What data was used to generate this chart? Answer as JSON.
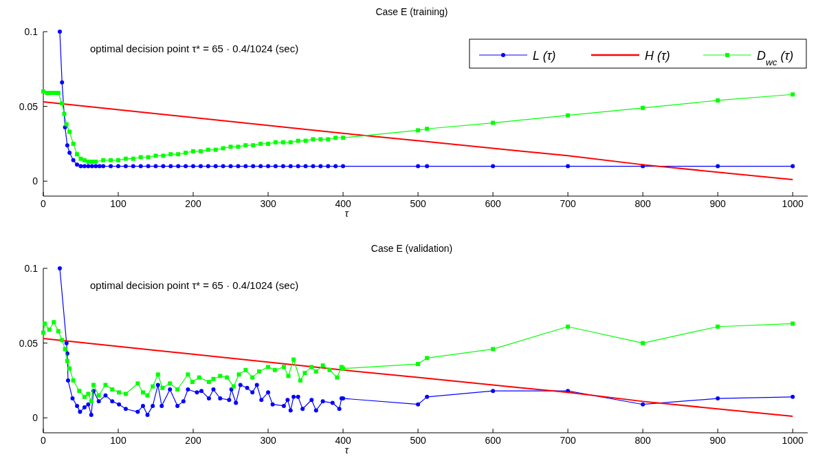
{
  "chart_data": [
    {
      "type": "line",
      "title": "Case E (training)",
      "xlabel": "τ",
      "annotations": [
        "optimal decision point τ* = 65 · 0.4/1024 (sec)"
      ],
      "xlim": [
        0,
        1020
      ],
      "xticks": [
        0,
        100,
        200,
        300,
        400,
        500,
        600,
        700,
        800,
        900,
        1000
      ],
      "ylim": [
        -0.01,
        0.1
      ],
      "yticks": [
        0,
        0.05,
        0.1
      ],
      "legend": "top right",
      "grid": false,
      "series": [
        {
          "name": "L (τ)",
          "color": "#0000ff",
          "marker": "circle",
          "x": [
            22,
            25,
            29,
            32,
            35,
            40,
            45,
            50,
            55,
            60,
            65,
            70,
            75,
            80,
            90,
            100,
            110,
            120,
            130,
            140,
            150,
            160,
            170,
            180,
            190,
            200,
            210,
            220,
            230,
            240,
            250,
            260,
            270,
            280,
            290,
            300,
            310,
            320,
            330,
            340,
            350,
            360,
            370,
            380,
            390,
            400,
            500,
            512,
            600,
            700,
            800,
            900,
            1000
          ],
          "values": [
            0.1,
            0.066,
            0.036,
            0.024,
            0.019,
            0.014,
            0.011,
            0.01,
            0.01,
            0.01,
            0.01,
            0.01,
            0.01,
            0.01,
            0.01,
            0.01,
            0.01,
            0.01,
            0.01,
            0.01,
            0.01,
            0.01,
            0.01,
            0.01,
            0.01,
            0.01,
            0.01,
            0.01,
            0.01,
            0.01,
            0.01,
            0.01,
            0.01,
            0.01,
            0.01,
            0.01,
            0.01,
            0.01,
            0.01,
            0.01,
            0.01,
            0.01,
            0.01,
            0.01,
            0.01,
            0.01,
            0.01,
            0.01,
            0.01,
            0.01,
            0.01,
            0.01,
            0.01
          ]
        },
        {
          "name": "H (τ)",
          "color": "#ff0000",
          "marker": "none",
          "x": [
            0,
            400,
            500,
            700,
            800,
            1000
          ],
          "values": [
            0.053,
            0.032,
            0.027,
            0.017,
            0.011,
            0.001
          ]
        },
        {
          "name": "D$_{wc}$ (τ)",
          "color": "#00ff00",
          "marker": "square",
          "x": [
            0,
            5,
            10,
            15,
            20,
            25,
            28,
            31,
            35,
            40,
            45,
            50,
            55,
            60,
            65,
            70,
            80,
            90,
            100,
            110,
            120,
            130,
            140,
            150,
            160,
            170,
            180,
            190,
            200,
            210,
            220,
            230,
            240,
            250,
            260,
            270,
            280,
            290,
            300,
            310,
            320,
            330,
            340,
            350,
            360,
            370,
            380,
            390,
            400,
            500,
            512,
            600,
            700,
            800,
            900,
            1000
          ],
          "values": [
            0.06,
            0.059,
            0.059,
            0.059,
            0.059,
            0.052,
            0.045,
            0.038,
            0.033,
            0.025,
            0.018,
            0.015,
            0.014,
            0.013,
            0.013,
            0.013,
            0.014,
            0.014,
            0.014,
            0.015,
            0.015,
            0.016,
            0.016,
            0.017,
            0.017,
            0.018,
            0.018,
            0.019,
            0.02,
            0.02,
            0.021,
            0.021,
            0.022,
            0.023,
            0.023,
            0.024,
            0.024,
            0.025,
            0.025,
            0.026,
            0.026,
            0.026,
            0.027,
            0.027,
            0.028,
            0.028,
            0.028,
            0.029,
            0.029,
            0.034,
            0.035,
            0.039,
            0.044,
            0.049,
            0.054,
            0.058
          ]
        }
      ]
    },
    {
      "type": "line",
      "title": "Case E (validation)",
      "xlabel": "τ",
      "annotations": [
        "optimal decision point τ* = 65 · 0.4/1024 (sec)"
      ],
      "xlim": [
        0,
        1020
      ],
      "xticks": [
        0,
        100,
        200,
        300,
        400,
        500,
        600,
        700,
        800,
        900,
        1000
      ],
      "ylim": [
        -0.01,
        0.1
      ],
      "yticks": [
        0,
        0.05,
        0.1
      ],
      "grid": false,
      "series": [
        {
          "color": "#0000ff",
          "marker": "circle",
          "x": [
            22,
            31,
            32,
            33,
            39,
            45,
            49,
            55,
            60,
            64,
            67,
            74,
            83,
            92,
            101,
            110,
            126,
            133,
            139,
            146,
            153,
            158,
            169,
            179,
            187,
            193,
            205,
            211,
            221,
            227,
            236,
            248,
            251,
            257,
            263,
            272,
            279,
            285,
            291,
            300,
            306,
            321,
            326,
            330,
            334,
            340,
            346,
            358,
            364,
            373,
            386,
            395,
            398,
            400,
            500,
            512,
            600,
            700,
            800,
            900,
            1000
          ],
          "values": [
            0.1,
            0.05,
            0.043,
            0.025,
            0.013,
            0.008,
            0.004,
            0.007,
            0.009,
            0.002,
            0.018,
            0.011,
            0.015,
            0.011,
            0.009,
            0.006,
            0.004,
            0.008,
            0.002,
            0.008,
            0.022,
            0.008,
            0.019,
            0.008,
            0.011,
            0.019,
            0.017,
            0.018,
            0.013,
            0.019,
            0.013,
            0.012,
            0.019,
            0.01,
            0.022,
            0.02,
            0.017,
            0.022,
            0.012,
            0.017,
            0.009,
            0.008,
            0.012,
            0.005,
            0.014,
            0.014,
            0.006,
            0.012,
            0.005,
            0.011,
            0.01,
            0.006,
            0.013,
            0.013,
            0.009,
            0.014,
            0.018,
            0.018,
            0.009,
            0.013,
            0.014
          ]
        },
        {
          "color": "#ff0000",
          "marker": "none",
          "x": [
            0,
            400,
            500,
            700,
            800,
            1000
          ],
          "values": [
            0.053,
            0.032,
            0.027,
            0.017,
            0.011,
            0.001
          ]
        },
        {
          "color": "#00ff00",
          "marker": "square",
          "x": [
            0,
            2,
            8,
            14,
            20,
            25,
            29,
            32,
            35,
            40,
            48,
            55,
            60,
            64,
            67,
            74,
            83,
            92,
            101,
            110,
            126,
            133,
            139,
            146,
            153,
            159,
            169,
            179,
            193,
            199,
            208,
            221,
            227,
            236,
            245,
            254,
            261,
            270,
            279,
            288,
            300,
            309,
            321,
            327,
            334,
            343,
            349,
            358,
            364,
            373,
            382,
            392,
            398,
            400,
            500,
            512,
            600,
            700,
            800,
            900,
            1000
          ],
          "values": [
            0.057,
            0.063,
            0.059,
            0.064,
            0.058,
            0.052,
            0.046,
            0.038,
            0.033,
            0.025,
            0.018,
            0.014,
            0.016,
            0.011,
            0.022,
            0.015,
            0.022,
            0.019,
            0.017,
            0.016,
            0.023,
            0.017,
            0.015,
            0.021,
            0.029,
            0.02,
            0.023,
            0.019,
            0.029,
            0.024,
            0.027,
            0.024,
            0.026,
            0.028,
            0.027,
            0.021,
            0.029,
            0.032,
            0.027,
            0.031,
            0.034,
            0.032,
            0.034,
            0.028,
            0.039,
            0.025,
            0.03,
            0.034,
            0.031,
            0.035,
            0.032,
            0.027,
            0.034,
            0.033,
            0.036,
            0.04,
            0.046,
            0.061,
            0.05,
            0.061,
            0.063
          ]
        }
      ]
    }
  ]
}
